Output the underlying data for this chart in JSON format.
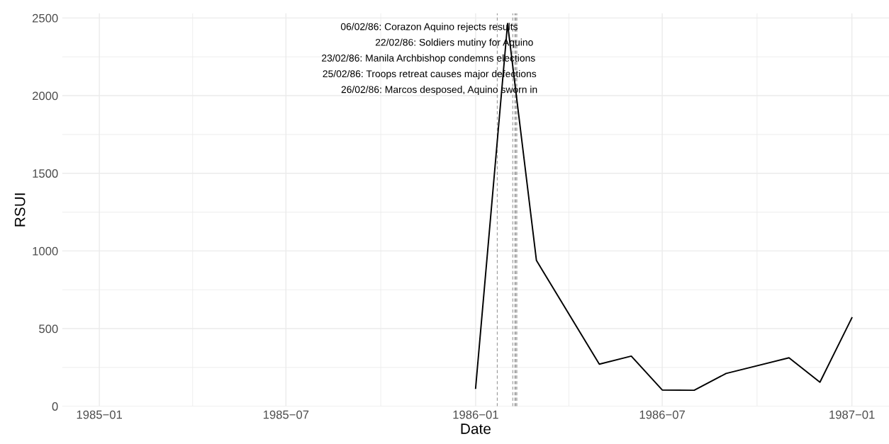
{
  "chart_data": {
    "type": "line",
    "xlabel": "Date",
    "ylabel": "RSUI",
    "x": [
      "1986-01-01",
      "1986-02-01",
      "1986-03-01",
      "1986-05-01",
      "1986-06-01",
      "1986-07-01",
      "1986-08-01",
      "1986-09-01",
      "1986-11-01",
      "1986-12-01",
      "1987-01-01"
    ],
    "series": [
      {
        "color": "#000000",
        "values": [
          116,
          2464,
          939,
          271,
          323,
          105,
          103,
          211,
          312,
          155,
          570
        ]
      }
    ],
    "xlim": [
      "1984-11-26",
      "1987-02-06"
    ],
    "xticks": [
      {
        "value": "1985-01-01",
        "label": "1985−01"
      },
      {
        "value": "1985-07-01",
        "label": "1985−07"
      },
      {
        "value": "1986-01-01",
        "label": "1986−01"
      },
      {
        "value": "1986-07-01",
        "label": "1986−07"
      },
      {
        "value": "1987-01-01",
        "label": "1987−01"
      }
    ],
    "ylim": [
      0,
      2530
    ],
    "yticks": [
      0,
      500,
      1000,
      1500,
      2000,
      2500
    ],
    "grid": true,
    "marker": "none",
    "line_style": "solid",
    "ref_lines": [
      {
        "axis": "x",
        "value": "1986-01-22",
        "label": "06/02/86: Corazon Aquino rejects results",
        "color": "#999999",
        "line_style": "dashed"
      },
      {
        "axis": "x",
        "value": "1986-02-06",
        "label": "22/02/86: Soldiers mutiny for Aquino",
        "color": "#999999",
        "line_style": "dashed"
      },
      {
        "axis": "x",
        "value": "1986-02-08",
        "label": "23/02/86: Manila Archbishop condemns elections",
        "color": "#999999",
        "line_style": "dashed"
      },
      {
        "axis": "x",
        "value": "1986-02-09",
        "label": "25/02/86: Troops retreat causes major defections",
        "color": "#999999",
        "line_style": "dashed"
      },
      {
        "axis": "x",
        "value": "1986-02-10",
        "label": "26/02/86: Marcos desposed, Aquino sworn in",
        "color": "#999999",
        "line_style": "dashed"
      }
    ]
  }
}
